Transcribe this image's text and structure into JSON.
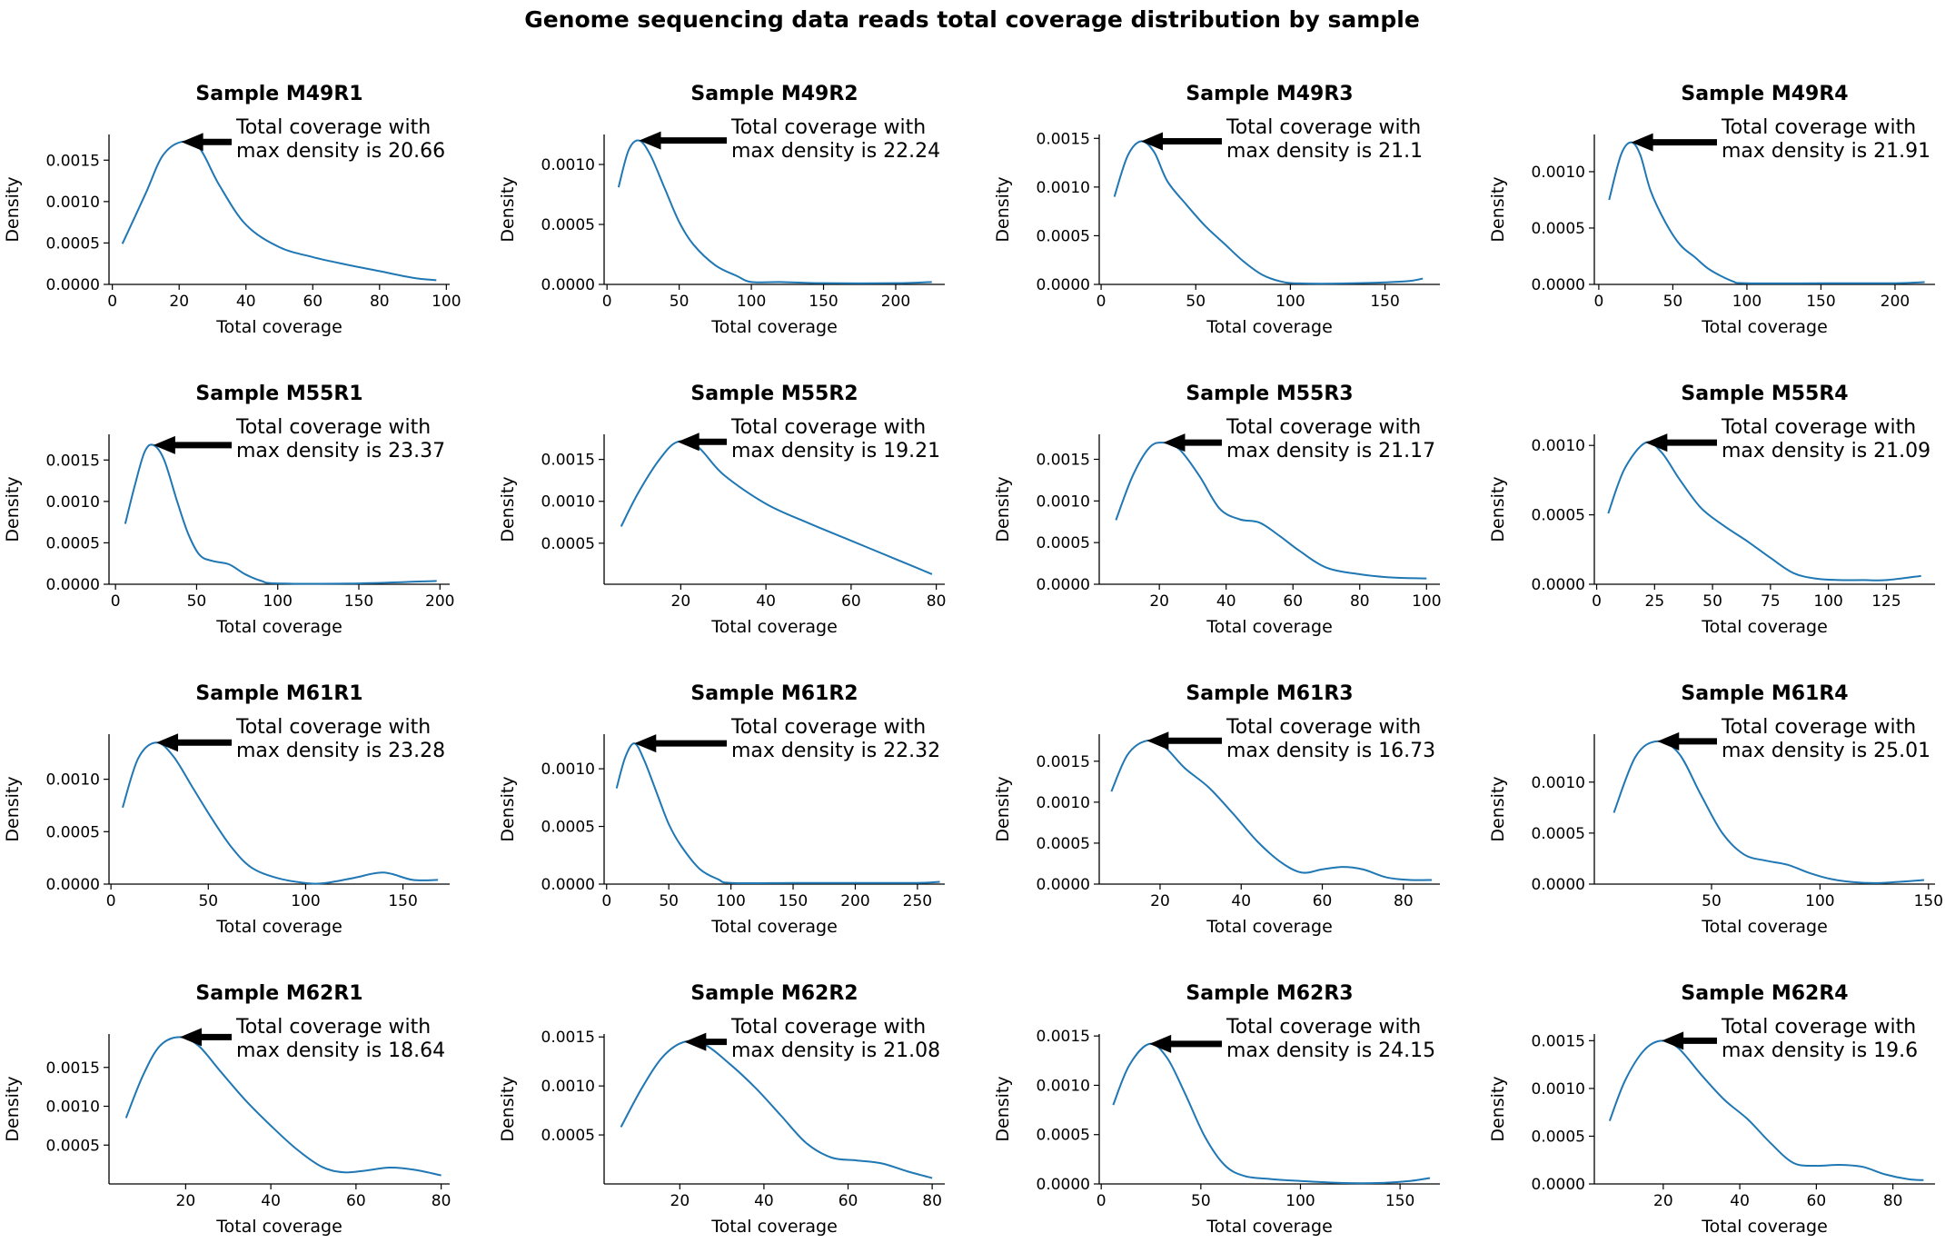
{
  "suptitle": "Genome sequencing data reads total coverage distribution by sample",
  "colors": {
    "line": "#1f77b4",
    "axis": "#000000",
    "arrow": "#000000"
  },
  "chart_data": [
    {
      "type": "line",
      "title": "Sample M49R1",
      "xlabel": "Total coverage",
      "ylabel": "Density",
      "annotation": [
        "Total coverage with",
        "max density is 20.66"
      ],
      "peak_x": 20.66,
      "xlim": [
        -1,
        101
      ],
      "ylim": [
        0,
        0.00181
      ],
      "xticks": [
        0,
        20,
        40,
        60,
        80,
        100
      ],
      "yticks": [
        0,
        0.0005,
        0.001,
        0.0015
      ],
      "ytick_labels": [
        "0.0000",
        "0.0005",
        "0.0010",
        "0.0015"
      ],
      "series": [
        {
          "x": [
            3,
            10,
            15,
            20.66,
            26,
            32,
            40,
            50,
            60,
            70,
            80,
            90,
            97
          ],
          "y": [
            0.00049,
            0.0011,
            0.00155,
            0.00172,
            0.00165,
            0.0012,
            0.00072,
            0.00045,
            0.00033,
            0.00024,
            0.00016,
            8e-05,
            5e-05
          ]
        }
      ]
    },
    {
      "type": "line",
      "title": "Sample M49R2",
      "xlabel": "Total coverage",
      "ylabel": "Density",
      "annotation": [
        "Total coverage with",
        "max density is 22.24"
      ],
      "peak_x": 22.24,
      "xlim": [
        -2,
        234
      ],
      "ylim": [
        0,
        0.00125
      ],
      "xticks": [
        0,
        50,
        100,
        150,
        200
      ],
      "yticks": [
        0,
        0.0005,
        0.001
      ],
      "ytick_labels": [
        "0.0000",
        "0.0005",
        "0.0010"
      ],
      "series": [
        {
          "x": [
            8,
            15,
            22.24,
            30,
            40,
            50,
            60,
            75,
            90,
            100,
            120,
            150,
            200,
            225
          ],
          "y": [
            0.00081,
            0.00112,
            0.0012,
            0.00108,
            0.0008,
            0.00052,
            0.00033,
            0.00016,
            7e-05,
            2e-05,
            2e-05,
            1e-05,
            1e-05,
            2e-05
          ]
        }
      ]
    },
    {
      "type": "line",
      "title": "Sample M49R3",
      "xlabel": "Total coverage",
      "ylabel": "Density",
      "annotation": [
        "Total coverage with",
        "max density is 21.1"
      ],
      "peak_x": 21.1,
      "xlim": [
        -1,
        179
      ],
      "ylim": [
        0,
        0.00154
      ],
      "xticks": [
        0,
        50,
        100,
        150
      ],
      "yticks": [
        0,
        0.0005,
        0.001,
        0.0015
      ],
      "ytick_labels": [
        "0.0000",
        "0.0005",
        "0.0010",
        "0.0015"
      ],
      "series": [
        {
          "x": [
            7,
            14,
            21.1,
            28,
            35,
            45,
            55,
            65,
            75,
            85,
            95,
            105,
            130,
            160,
            170
          ],
          "y": [
            0.0009,
            0.00132,
            0.00147,
            0.00136,
            0.00106,
            0.00082,
            0.0006,
            0.00042,
            0.00024,
            0.0001,
            3e-05,
            1e-05,
            1e-05,
            3e-05,
            6e-05
          ]
        }
      ]
    },
    {
      "type": "line",
      "title": "Sample M49R4",
      "xlabel": "Total coverage",
      "ylabel": "Density",
      "annotation": [
        "Total coverage with",
        "max density is 21.91"
      ],
      "peak_x": 21.91,
      "xlim": [
        -3,
        227
      ],
      "ylim": [
        0,
        0.00133
      ],
      "xticks": [
        0,
        50,
        100,
        150,
        200
      ],
      "yticks": [
        0,
        0.0005,
        0.001
      ],
      "ytick_labels": [
        "0.0000",
        "0.0005",
        "0.0010"
      ],
      "series": [
        {
          "x": [
            7,
            15,
            21.91,
            28,
            35,
            45,
            55,
            65,
            75,
            90,
            100,
            150,
            200,
            220
          ],
          "y": [
            0.00075,
            0.00115,
            0.00126,
            0.00115,
            0.00083,
            0.00055,
            0.00035,
            0.00024,
            0.00013,
            3e-05,
            1e-05,
            1e-05,
            1e-05,
            2e-05
          ]
        }
      ]
    },
    {
      "type": "line",
      "title": "Sample M55R1",
      "xlabel": "Total coverage",
      "ylabel": "Density",
      "annotation": [
        "Total coverage with",
        "max density is 23.37"
      ],
      "peak_x": 23.37,
      "xlim": [
        -4,
        206
      ],
      "ylim": [
        0,
        0.00181
      ],
      "xticks": [
        0,
        50,
        100,
        150,
        200
      ],
      "yticks": [
        0,
        0.0005,
        0.001,
        0.0015
      ],
      "ytick_labels": [
        "0.0000",
        "0.0005",
        "0.0010",
        "0.0015"
      ],
      "series": [
        {
          "x": [
            6,
            12,
            18,
            23.37,
            30,
            38,
            45,
            52,
            60,
            70,
            80,
            90,
            100,
            150,
            198
          ],
          "y": [
            0.00073,
            0.0012,
            0.0016,
            0.00168,
            0.0015,
            0.001,
            0.0006,
            0.00035,
            0.00028,
            0.00024,
            0.00012,
            4e-05,
            1e-05,
            1e-05,
            4e-05
          ]
        }
      ]
    },
    {
      "type": "line",
      "title": "Sample M55R2",
      "xlabel": "Total coverage",
      "ylabel": "Density",
      "annotation": [
        "Total coverage with",
        "max density is 19.21"
      ],
      "peak_x": 19.21,
      "xlim": [
        2,
        82
      ],
      "ylim": [
        1e-05,
        0.0018
      ],
      "xticks": [
        20,
        40,
        60,
        80
      ],
      "yticks": [
        0.0005,
        0.001,
        0.0015
      ],
      "ytick_labels": [
        "0.0005",
        "0.0010",
        "0.0015"
      ],
      "series": [
        {
          "x": [
            6,
            10,
            15,
            19.21,
            24,
            30,
            40,
            50,
            60,
            70,
            79
          ],
          "y": [
            0.0007,
            0.0011,
            0.0015,
            0.00171,
            0.00165,
            0.00132,
            0.00097,
            0.00074,
            0.00053,
            0.00032,
            0.00013
          ]
        }
      ]
    },
    {
      "type": "line",
      "title": "Sample M55R3",
      "xlabel": "Total coverage",
      "ylabel": "Density",
      "annotation": [
        "Total coverage with",
        "max density is 21.17"
      ],
      "peak_x": 21.17,
      "xlim": [
        2,
        104
      ],
      "ylim": [
        0,
        0.0018
      ],
      "xticks": [
        20,
        40,
        60,
        80,
        100
      ],
      "yticks": [
        0,
        0.0005,
        0.001,
        0.0015
      ],
      "ytick_labels": [
        "0.0000",
        "0.0005",
        "0.0010",
        "0.0015"
      ],
      "series": [
        {
          "x": [
            7,
            12,
            17,
            21.17,
            26,
            32,
            38,
            44,
            50,
            56,
            62,
            70,
            80,
            90,
            100
          ],
          "y": [
            0.00077,
            0.0013,
            0.00164,
            0.0017,
            0.00162,
            0.0013,
            0.00091,
            0.00078,
            0.00074,
            0.00058,
            0.0004,
            0.0002,
            0.00012,
            8e-05,
            7e-05
          ]
        }
      ]
    },
    {
      "type": "line",
      "title": "Sample M55R4",
      "xlabel": "Total coverage",
      "ylabel": "Density",
      "annotation": [
        "Total coverage with",
        "max density is 21.09"
      ],
      "peak_x": 21.09,
      "xlim": [
        -1,
        146
      ],
      "ylim": [
        0,
        0.00108
      ],
      "xticks": [
        0,
        25,
        50,
        75,
        100,
        125
      ],
      "yticks": [
        0,
        0.0005,
        0.001
      ],
      "ytick_labels": [
        "0.0000",
        "0.0005",
        "0.0010"
      ],
      "series": [
        {
          "x": [
            5,
            12,
            21.09,
            28,
            36,
            45,
            55,
            65,
            75,
            85,
            95,
            105,
            115,
            125,
            140
          ],
          "y": [
            0.00051,
            0.00083,
            0.00102,
            0.00095,
            0.00075,
            0.00055,
            0.00042,
            0.00031,
            0.00019,
            8e-05,
            4e-05,
            3e-05,
            3e-05,
            3e-05,
            6e-05
          ]
        }
      ]
    },
    {
      "type": "line",
      "title": "Sample M61R1",
      "xlabel": "Total coverage",
      "ylabel": "Density",
      "annotation": [
        "Total coverage with",
        "max density is 23.28"
      ],
      "peak_x": 23.28,
      "xlim": [
        -1,
        174
      ],
      "ylim": [
        0,
        0.00143
      ],
      "xticks": [
        0,
        50,
        100,
        150
      ],
      "yticks": [
        0,
        0.0005,
        0.001
      ],
      "ytick_labels": [
        "0.0000",
        "0.0005",
        "0.0010"
      ],
      "series": [
        {
          "x": [
            6,
            14,
            23.28,
            32,
            42,
            52,
            62,
            72,
            85,
            100,
            110,
            125,
            140,
            155,
            168
          ],
          "y": [
            0.00073,
            0.0012,
            0.00135,
            0.00122,
            0.00092,
            0.00062,
            0.00035,
            0.00016,
            6e-05,
            1e-05,
            1e-05,
            6e-05,
            0.00011,
            4e-05,
            4e-05
          ]
        }
      ]
    },
    {
      "type": "line",
      "title": "Sample M61R2",
      "xlabel": "Total coverage",
      "ylabel": "Density",
      "annotation": [
        "Total coverage with",
        "max density is 22.32"
      ],
      "peak_x": 22.32,
      "xlim": [
        -2,
        272
      ],
      "ylim": [
        0,
        0.0013
      ],
      "xticks": [
        0,
        50,
        100,
        150,
        200,
        250
      ],
      "yticks": [
        0,
        0.0005,
        0.001
      ],
      "ytick_labels": [
        "0.0000",
        "0.0005",
        "0.0010"
      ],
      "series": [
        {
          "x": [
            8,
            15,
            22.32,
            30,
            40,
            50,
            60,
            75,
            90,
            100,
            150,
            200,
            250,
            268
          ],
          "y": [
            0.00083,
            0.0011,
            0.00122,
            0.00108,
            0.0008,
            0.00052,
            0.00033,
            0.00013,
            4e-05,
            1e-05,
            1e-05,
            1e-05,
            1e-05,
            2e-05
          ]
        }
      ]
    },
    {
      "type": "line",
      "title": "Sample M61R3",
      "xlabel": "Total coverage",
      "ylabel": "Density",
      "annotation": [
        "Total coverage with",
        "max density is 16.73"
      ],
      "peak_x": 16.73,
      "xlim": [
        5,
        89
      ],
      "ylim": [
        0,
        0.00183
      ],
      "xticks": [
        20,
        40,
        60,
        80
      ],
      "yticks": [
        0,
        0.0005,
        0.001,
        0.0015
      ],
      "ytick_labels": [
        "0.0000",
        "0.0005",
        "0.0010",
        "0.0015"
      ],
      "series": [
        {
          "x": [
            8,
            12,
            16.73,
            21,
            26,
            32,
            38,
            44,
            50,
            55,
            60,
            65,
            70,
            76,
            82,
            87
          ],
          "y": [
            0.00113,
            0.00158,
            0.00175,
            0.00168,
            0.00142,
            0.00118,
            0.00086,
            0.00052,
            0.00026,
            0.00014,
            0.00018,
            0.00021,
            0.00018,
            8e-05,
            5e-05,
            5e-05
          ]
        }
      ]
    },
    {
      "type": "line",
      "title": "Sample M61R4",
      "xlabel": "Total coverage",
      "ylabel": "Density",
      "annotation": [
        "Total coverage with",
        "max density is 25.01"
      ],
      "peak_x": 25.01,
      "xlim": [
        -4,
        153
      ],
      "ylim": [
        0,
        0.00147
      ],
      "xticks": [
        50,
        100,
        150
      ],
      "yticks": [
        0,
        0.0005,
        0.001
      ],
      "ytick_labels": [
        "0.0000",
        "0.0005",
        "0.0010"
      ],
      "series": [
        {
          "x": [
            5,
            15,
            25.01,
            35,
            45,
            55,
            65,
            75,
            85,
            95,
            105,
            115,
            125,
            135,
            148
          ],
          "y": [
            0.0007,
            0.00125,
            0.0014,
            0.00128,
            0.00088,
            0.0005,
            0.00029,
            0.00023,
            0.00019,
            0.00011,
            5e-05,
            2e-05,
            1e-05,
            2e-05,
            4e-05
          ]
        }
      ]
    },
    {
      "type": "line",
      "title": "Sample M62R1",
      "xlabel": "Total coverage",
      "ylabel": "Density",
      "annotation": [
        "Total coverage with",
        "max density is 18.64"
      ],
      "peak_x": 18.64,
      "xlim": [
        2,
        82
      ],
      "ylim": [
        0,
        0.00193
      ],
      "xticks": [
        20,
        40,
        60,
        80
      ],
      "yticks": [
        0.0005,
        0.001,
        0.0015
      ],
      "ytick_labels": [
        "0.0005",
        "0.0010",
        "0.0015"
      ],
      "series": [
        {
          "x": [
            6,
            10,
            14,
            18.64,
            23,
            28,
            34,
            40,
            46,
            52,
            57,
            62,
            68,
            74,
            80
          ],
          "y": [
            0.00085,
            0.0014,
            0.00178,
            0.00189,
            0.00178,
            0.00146,
            0.00108,
            0.00075,
            0.00045,
            0.00022,
            0.00015,
            0.00017,
            0.00021,
            0.00018,
            0.00011
          ]
        }
      ]
    },
    {
      "type": "line",
      "title": "Sample M62R2",
      "xlabel": "Total coverage",
      "ylabel": "Density",
      "annotation": [
        "Total coverage with",
        "max density is 21.08"
      ],
      "peak_x": 21.08,
      "xlim": [
        2,
        83
      ],
      "ylim": [
        0,
        0.00153
      ],
      "xticks": [
        20,
        40,
        60,
        80
      ],
      "yticks": [
        0.0005,
        0.001,
        0.0015
      ],
      "ytick_labels": [
        "0.0005",
        "0.0010",
        "0.0015"
      ],
      "series": [
        {
          "x": [
            6,
            11,
            16,
            21.08,
            26,
            32,
            38,
            44,
            50,
            56,
            62,
            68,
            74,
            80
          ],
          "y": [
            0.00058,
            0.00098,
            0.0013,
            0.00145,
            0.00142,
            0.00122,
            0.00098,
            0.0007,
            0.00042,
            0.00027,
            0.00024,
            0.00021,
            0.00013,
            6e-05
          ]
        }
      ]
    },
    {
      "type": "line",
      "title": "Sample M62R3",
      "xlabel": "Total coverage",
      "ylabel": "Density",
      "annotation": [
        "Total coverage with",
        "max density is 24.15"
      ],
      "peak_x": 24.15,
      "xlim": [
        -1,
        170
      ],
      "ylim": [
        0,
        0.00152
      ],
      "xticks": [
        0,
        50,
        100,
        150
      ],
      "yticks": [
        0,
        0.0005,
        0.001,
        0.0015
      ],
      "ytick_labels": [
        "0.0000",
        "0.0005",
        "0.0010",
        "0.0015"
      ],
      "series": [
        {
          "x": [
            6,
            14,
            24.15,
            33,
            42,
            52,
            62,
            72,
            85,
            100,
            120,
            140,
            155,
            165
          ],
          "y": [
            0.0008,
            0.0012,
            0.00142,
            0.00128,
            0.00092,
            0.00048,
            0.00019,
            8e-05,
            5e-05,
            3e-05,
            1e-05,
            1e-05,
            3e-05,
            6e-05
          ]
        }
      ]
    },
    {
      "type": "line",
      "title": "Sample M62R4",
      "xlabel": "Total coverage",
      "ylabel": "Density",
      "annotation": [
        "Total coverage with",
        "max density is 19.6"
      ],
      "peak_x": 19.6,
      "xlim": [
        2,
        91
      ],
      "ylim": [
        0,
        0.00157
      ],
      "xticks": [
        20,
        40,
        60,
        80
      ],
      "yticks": [
        0,
        0.0005,
        0.001,
        0.0015
      ],
      "ytick_labels": [
        "0.0000",
        "0.0005",
        "0.0010",
        "0.0015"
      ],
      "series": [
        {
          "x": [
            6,
            10,
            15,
            19.6,
            24,
            30,
            36,
            42,
            48,
            54,
            60,
            66,
            72,
            78,
            84,
            88
          ],
          "y": [
            0.00066,
            0.00108,
            0.0014,
            0.0015,
            0.00142,
            0.00114,
            0.00088,
            0.00068,
            0.00043,
            0.00022,
            0.00019,
            0.0002,
            0.00018,
            0.0001,
            5e-05,
            4e-05
          ]
        }
      ]
    }
  ]
}
